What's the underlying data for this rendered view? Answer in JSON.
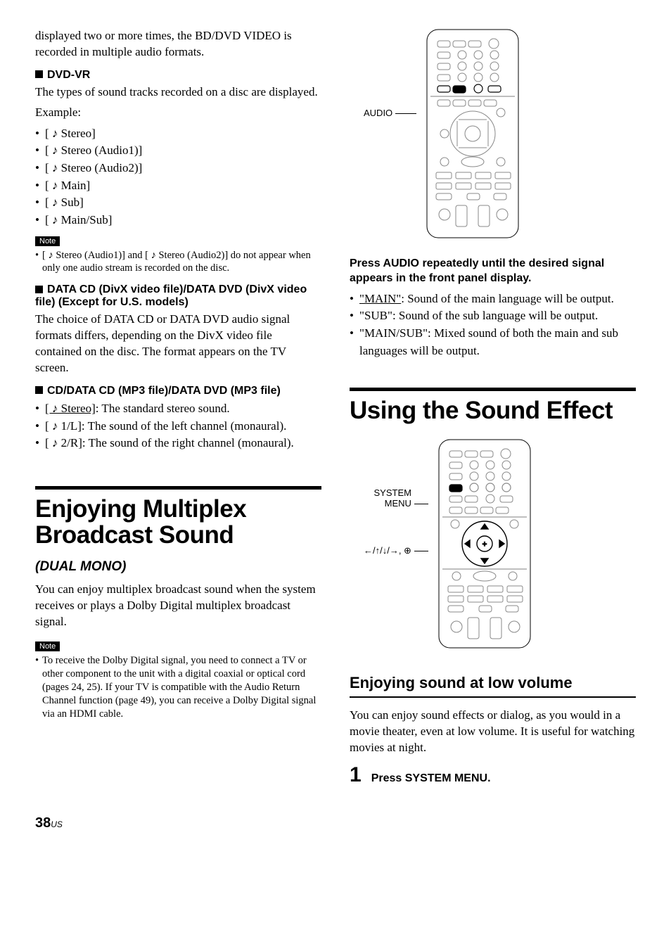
{
  "page_number": "38",
  "page_suffix": "US",
  "col1": {
    "intro_text": "displayed two or more times, the BD/DVD VIDEO is recorded in multiple audio formats.",
    "dvdvr_heading": "DVD-VR",
    "dvdvr_text1": "The types of sound tracks recorded on a disc are displayed.",
    "dvdvr_text2": "Example:",
    "dvdvr_items": [
      "[ ♪ Stereo]",
      "[ ♪ Stereo (Audio1)]",
      "[ ♪ Stereo (Audio2)]",
      "[ ♪ Main]",
      "[ ♪ Sub]",
      "[ ♪ Main/Sub]"
    ],
    "note_label": "Note",
    "dvdvr_note": "[ ♪ Stereo (Audio1)] and [ ♪ Stereo (Audio2)] do not appear when only one audio stream is recorded on the disc.",
    "datacd_heading": "DATA CD (DivX video file)/DATA DVD (DivX video file) (Except for U.S. models)",
    "datacd_text": "The choice of DATA CD or DATA DVD audio signal formats differs, depending on the DivX video file contained on the disc. The format appears on the TV screen.",
    "cd_heading": "CD/DATA CD (MP3 file)/DATA DVD (MP3 file)",
    "cd_items_html": [
      "<span class='underline'>[ ♪ Stereo]</span>: The standard stereo sound.",
      "[ ♪ 1/L]: The sound of the left channel (monaural).",
      "[ ♪ 2/R]: The sound of the right channel (monaural)."
    ],
    "multiplex_heading": "Enjoying Multiplex Broadcast Sound",
    "dual_mono": "(DUAL MONO)",
    "multiplex_text": "You can enjoy multiplex broadcast sound when the system receives or plays a Dolby Digital multiplex broadcast signal.",
    "multiplex_note": "To receive the Dolby Digital signal, you need to connect a TV or other component to the unit with a digital coaxial or optical cord (pages 24, 25). If your TV is compatible with the Audio Return Channel function (page 49), you can receive a Dolby Digital signal via an HDMI cable."
  },
  "col2": {
    "remote1_label": "AUDIO",
    "press_audio_heading": "Press AUDIO repeatedly until the desired signal appears in the front panel display.",
    "audio_items_html": [
      "<span class='underline'>\"MAIN\"</span>: Sound of the main language will be output.",
      "\"SUB\": Sound of the sub language will be output.",
      "\"MAIN/SUB\": Mixed sound of both the main and sub languages will be output."
    ],
    "sound_effect_heading": "Using the Sound Effect",
    "remote2_label1": "SYSTEM MENU",
    "remote2_label2": "←/↑/↓/→, ⊕",
    "low_vol_heading": "Enjoying sound at low volume",
    "low_vol_text": "You can enjoy sound effects or dialog, as you would in a movie theater, even at low volume. It is useful for watching movies at night.",
    "step1_text": "Press SYSTEM MENU."
  }
}
